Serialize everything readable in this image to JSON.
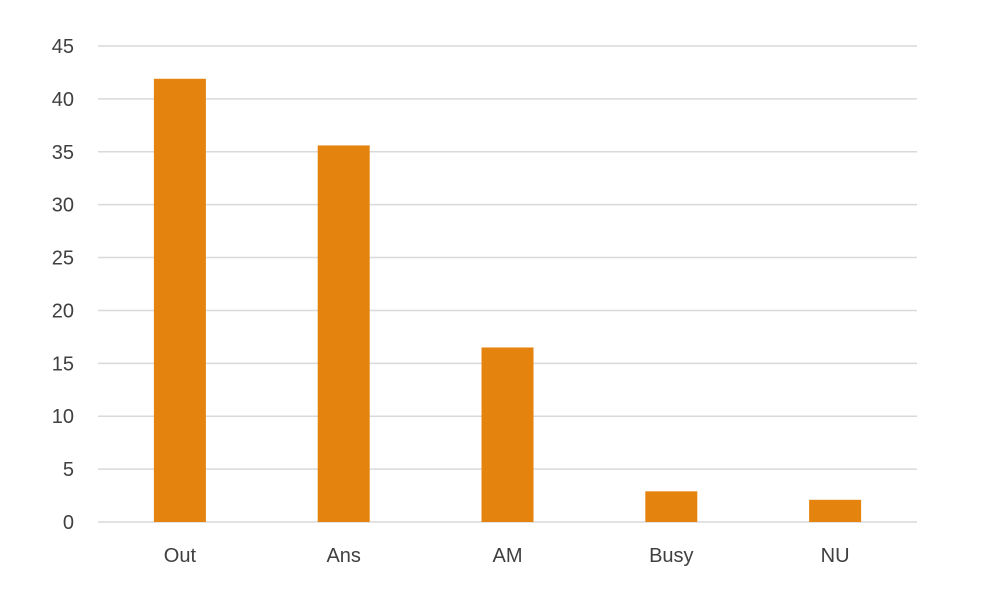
{
  "chart_data": {
    "type": "bar",
    "title": "",
    "xlabel": "",
    "ylabel": "",
    "categories": [
      "Out",
      "Ans",
      "AM",
      "Busy",
      "NU"
    ],
    "values": [
      41.9,
      35.6,
      16.5,
      2.9,
      2.1
    ],
    "ylim": [
      0,
      45
    ],
    "yticks": [
      "0",
      "5",
      "10",
      "15",
      "20",
      "25",
      "30",
      "35",
      "40",
      "45"
    ],
    "grid": true,
    "legend": "none",
    "bar_color": "#E5830F",
    "grid_color": "#D9D9D9",
    "text_color": "#404040"
  }
}
